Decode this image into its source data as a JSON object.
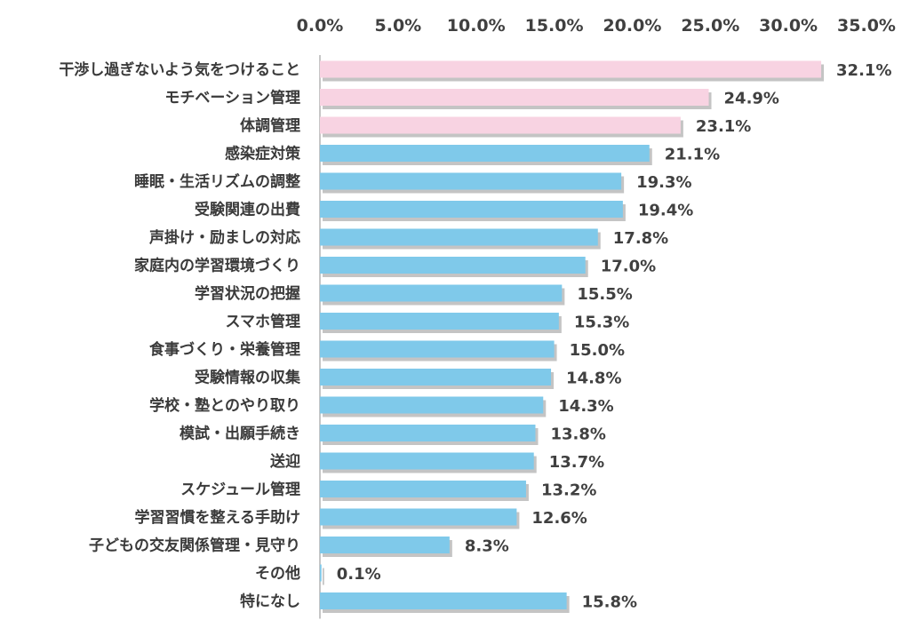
{
  "chart_data": {
    "type": "bar",
    "orientation": "horizontal",
    "title": "",
    "xlabel": "",
    "ylabel": "",
    "xlim": [
      0,
      35
    ],
    "ticks": [
      "0.0%",
      "5.0%",
      "10.0%",
      "15.0%",
      "20.0%",
      "25.0%",
      "30.0%",
      "35.0%"
    ],
    "tick_values": [
      0,
      5,
      10,
      15,
      20,
      25,
      30,
      35
    ],
    "grid": false,
    "legend": "none",
    "categories": [
      "干渉し過ぎないよう気をつけること",
      "モチベーション管理",
      "体調管理",
      "感染症対策",
      "睡眠・生活リズムの調整",
      "受験関連の出費",
      "声掛け・励ましの対応",
      "家庭内の学習環境づくり",
      "学習状況の把握",
      "スマホ管理",
      "食事づくり・栄養管理",
      "受験情報の収集",
      "学校・塾とのやり取り",
      "模試・出願手続き",
      "送迎",
      "スケジュール管理",
      "学習習慣を整える手助け",
      "子どもの交友関係管理・見守り",
      "その他",
      "特になし"
    ],
    "values": [
      32.1,
      24.9,
      23.1,
      21.1,
      19.3,
      19.4,
      17.8,
      17.0,
      15.5,
      15.3,
      15.0,
      14.8,
      14.3,
      13.8,
      13.7,
      13.2,
      12.6,
      8.3,
      0.1,
      15.8
    ],
    "value_labels": [
      "32.1%",
      "24.9%",
      "23.1%",
      "21.1%",
      "19.3%",
      "19.4%",
      "17.8%",
      "17.0%",
      "15.5%",
      "15.3%",
      "15.0%",
      "14.8%",
      "14.3%",
      "13.8%",
      "13.7%",
      "13.2%",
      "12.6%",
      "8.3%",
      "0.1%",
      "15.8%"
    ],
    "highlight_count": 3,
    "colors": {
      "highlight": "#f8d3e2",
      "normal": "#7fc9ea",
      "shadow": "#c4c4c4",
      "axis": "#b3b3b3",
      "text": "#404040"
    }
  }
}
